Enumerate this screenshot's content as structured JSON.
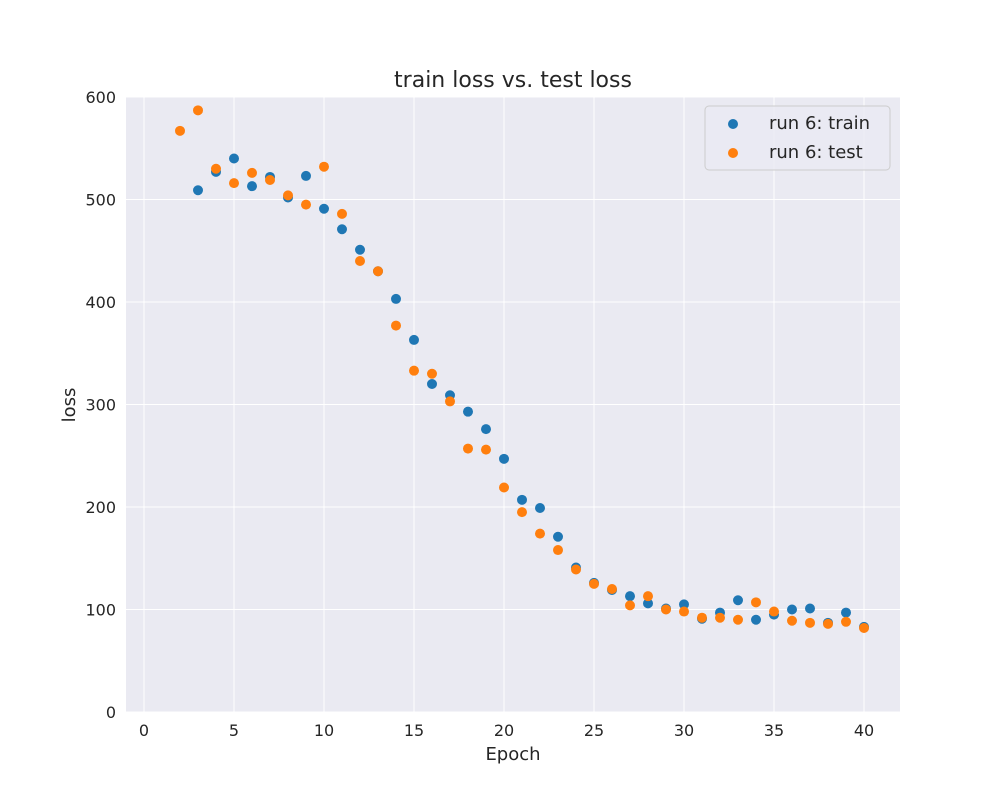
{
  "chart_data": {
    "type": "scatter",
    "title": "train loss vs. test loss",
    "xlabel": "Epoch",
    "ylabel": "loss",
    "xlim": [
      -1,
      42
    ],
    "ylim": [
      0,
      600
    ],
    "xticks": [
      0,
      5,
      10,
      15,
      20,
      25,
      30,
      35,
      40
    ],
    "yticks": [
      0,
      100,
      200,
      300,
      400,
      500,
      600
    ],
    "grid": true,
    "legend_position": "top-right",
    "background_color": "#EAEAF2",
    "series": [
      {
        "name": "run 6: train",
        "color": "#1F77B4",
        "x": [
          3,
          4,
          5,
          6,
          7,
          8,
          9,
          10,
          11,
          12,
          13,
          14,
          15,
          16,
          17,
          18,
          19,
          20,
          21,
          22,
          23,
          24,
          25,
          26,
          27,
          28,
          29,
          30,
          31,
          32,
          33,
          34,
          35,
          36,
          37,
          38,
          39,
          40
        ],
        "y": [
          509,
          527,
          540,
          513,
          522,
          502,
          523,
          491,
          471,
          451,
          430,
          403,
          363,
          320,
          309,
          293,
          276,
          247,
          207,
          199,
          171,
          141,
          126,
          119,
          113,
          106,
          101,
          105,
          91,
          97,
          109,
          90,
          95,
          100,
          101,
          87,
          97,
          83
        ]
      },
      {
        "name": "run 6: test",
        "color": "#FF7F0E",
        "x": [
          2,
          3,
          4,
          5,
          6,
          7,
          8,
          9,
          10,
          11,
          12,
          13,
          14,
          15,
          16,
          17,
          18,
          19,
          20,
          21,
          22,
          23,
          24,
          25,
          26,
          27,
          28,
          29,
          30,
          31,
          32,
          33,
          34,
          35,
          36,
          37,
          38,
          39,
          40
        ],
        "y": [
          567,
          587,
          530,
          516,
          526,
          519,
          504,
          495,
          532,
          486,
          440,
          430,
          377,
          333,
          330,
          303,
          257,
          256,
          219,
          195,
          174,
          158,
          139,
          125,
          120,
          104,
          113,
          100,
          98,
          92,
          92,
          90,
          107,
          98,
          89,
          87,
          86,
          88,
          82
        ]
      }
    ]
  }
}
